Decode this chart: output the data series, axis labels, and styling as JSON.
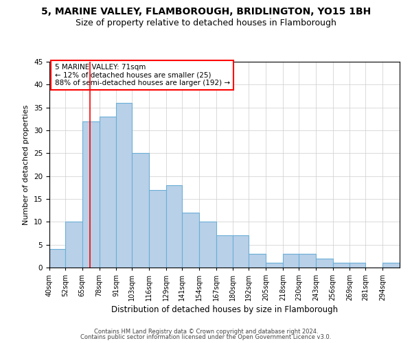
{
  "title1": "5, MARINE VALLEY, FLAMBOROUGH, BRIDLINGTON, YO15 1BH",
  "title2": "Size of property relative to detached houses in Flamborough",
  "xlabel": "Distribution of detached houses by size in Flamborough",
  "ylabel": "Number of detached properties",
  "footer1": "Contains HM Land Registry data © Crown copyright and database right 2024.",
  "footer2": "Contains public sector information licensed under the Open Government Licence v3.0.",
  "annotation_line1": "5 MARINE VALLEY: 71sqm",
  "annotation_line2": "← 12% of detached houses are smaller (25)",
  "annotation_line3": "88% of semi-detached houses are larger (192) →",
  "bar_color": "#b8d0e8",
  "bar_edge_color": "#6baed6",
  "ref_line_x": 71,
  "categories": [
    "40sqm",
    "52sqm",
    "65sqm",
    "78sqm",
    "91sqm",
    "103sqm",
    "116sqm",
    "129sqm",
    "141sqm",
    "154sqm",
    "167sqm",
    "180sqm",
    "192sqm",
    "205sqm",
    "218sqm",
    "230sqm",
    "243sqm",
    "256sqm",
    "269sqm",
    "281sqm",
    "294sqm"
  ],
  "values": [
    4,
    10,
    32,
    33,
    36,
    25,
    17,
    18,
    12,
    10,
    7,
    7,
    3,
    1,
    3,
    3,
    2,
    1,
    1,
    0,
    1
  ],
  "bin_edges": [
    40,
    52,
    65,
    78,
    91,
    103,
    116,
    129,
    141,
    154,
    167,
    180,
    192,
    205,
    218,
    230,
    243,
    256,
    269,
    281,
    294,
    307
  ],
  "ylim": [
    0,
    45
  ],
  "yticks": [
    0,
    5,
    10,
    15,
    20,
    25,
    30,
    35,
    40,
    45
  ],
  "grid_color": "#cccccc",
  "background_color": "#ffffff",
  "title_fontsize": 10,
  "subtitle_fontsize": 9,
  "tick_fontsize": 7,
  "ylabel_fontsize": 8,
  "xlabel_fontsize": 8.5,
  "annotation_fontsize": 7.5,
  "footer_fontsize": 6
}
